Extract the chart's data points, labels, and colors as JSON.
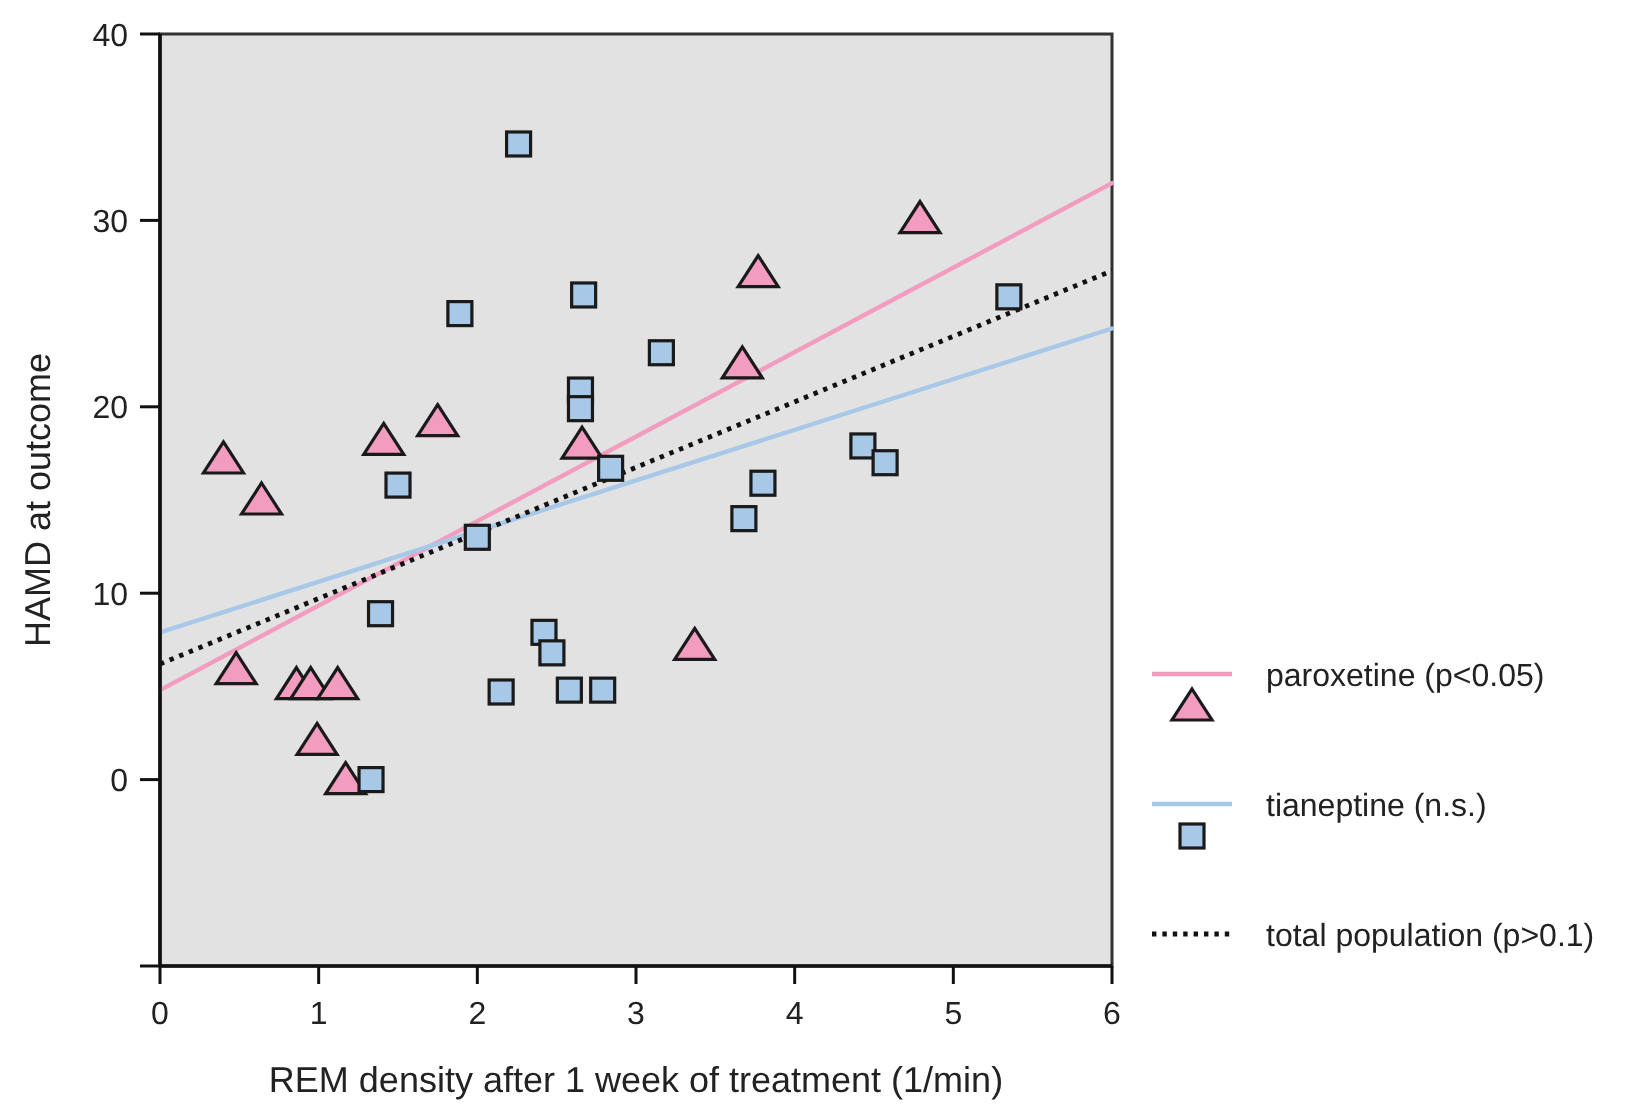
{
  "chart_data": {
    "type": "scatter",
    "xlabel": "REM density after 1 week of treatment (1/min)",
    "ylabel": "HAMD at outcome",
    "xlim": [
      0,
      6
    ],
    "xticks": [
      0,
      1,
      2,
      3,
      4,
      5,
      6
    ],
    "ylim": [
      -10,
      40
    ],
    "yticks": [
      {
        "value": -10,
        "label": null
      },
      0,
      10,
      20,
      30,
      40
    ],
    "legend": "right",
    "series": [
      {
        "name": "paroxetine (p<0.05)",
        "marker": "triangle",
        "color": "#f29cc0",
        "x": [
          0.4,
          0.64,
          1.41,
          1.75,
          2.66,
          4.79,
          3.77,
          3.67,
          0.48,
          0.86,
          0.95,
          1.12,
          0.99,
          1.17,
          3.37
        ],
        "values": [
          17.2,
          15.0,
          18.2,
          19.2,
          18.0,
          30.1,
          27.2,
          22.3,
          5.9,
          5.1,
          5.1,
          5.1,
          2.1,
          0.0,
          7.2
        ]
      },
      {
        "name": "tianeptine (n.s.)",
        "marker": "square",
        "color": "#a8c8e8",
        "x": [
          2.26,
          1.89,
          2.67,
          2.65,
          2.65,
          1.5,
          2.0,
          3.16,
          2.84,
          4.43,
          4.57,
          3.8,
          3.68,
          5.35,
          1.39,
          2.15,
          1.33,
          2.42,
          2.47,
          2.58,
          2.79
        ],
        "values": [
          34.1,
          25.0,
          26.0,
          20.9,
          19.9,
          15.8,
          13.0,
          22.9,
          16.7,
          17.9,
          17.0,
          15.9,
          14.0,
          25.9,
          8.9,
          4.7,
          0.0,
          7.9,
          6.8,
          4.8,
          4.8
        ]
      },
      {
        "type": "line",
        "line_style": "solid",
        "color": "#f29cc0",
        "x": [
          0,
          6
        ],
        "values": [
          4.8,
          32.0
        ]
      },
      {
        "type": "line",
        "line_style": "solid",
        "color": "#a8c8e8",
        "x": [
          0,
          6
        ],
        "values": [
          7.9,
          24.2
        ]
      },
      {
        "name": "total population (p>0.1)",
        "type": "line",
        "line_style": "dotted",
        "color": "#111111",
        "x": [
          0,
          6
        ],
        "values": [
          6.2,
          27.3
        ]
      }
    ]
  }
}
